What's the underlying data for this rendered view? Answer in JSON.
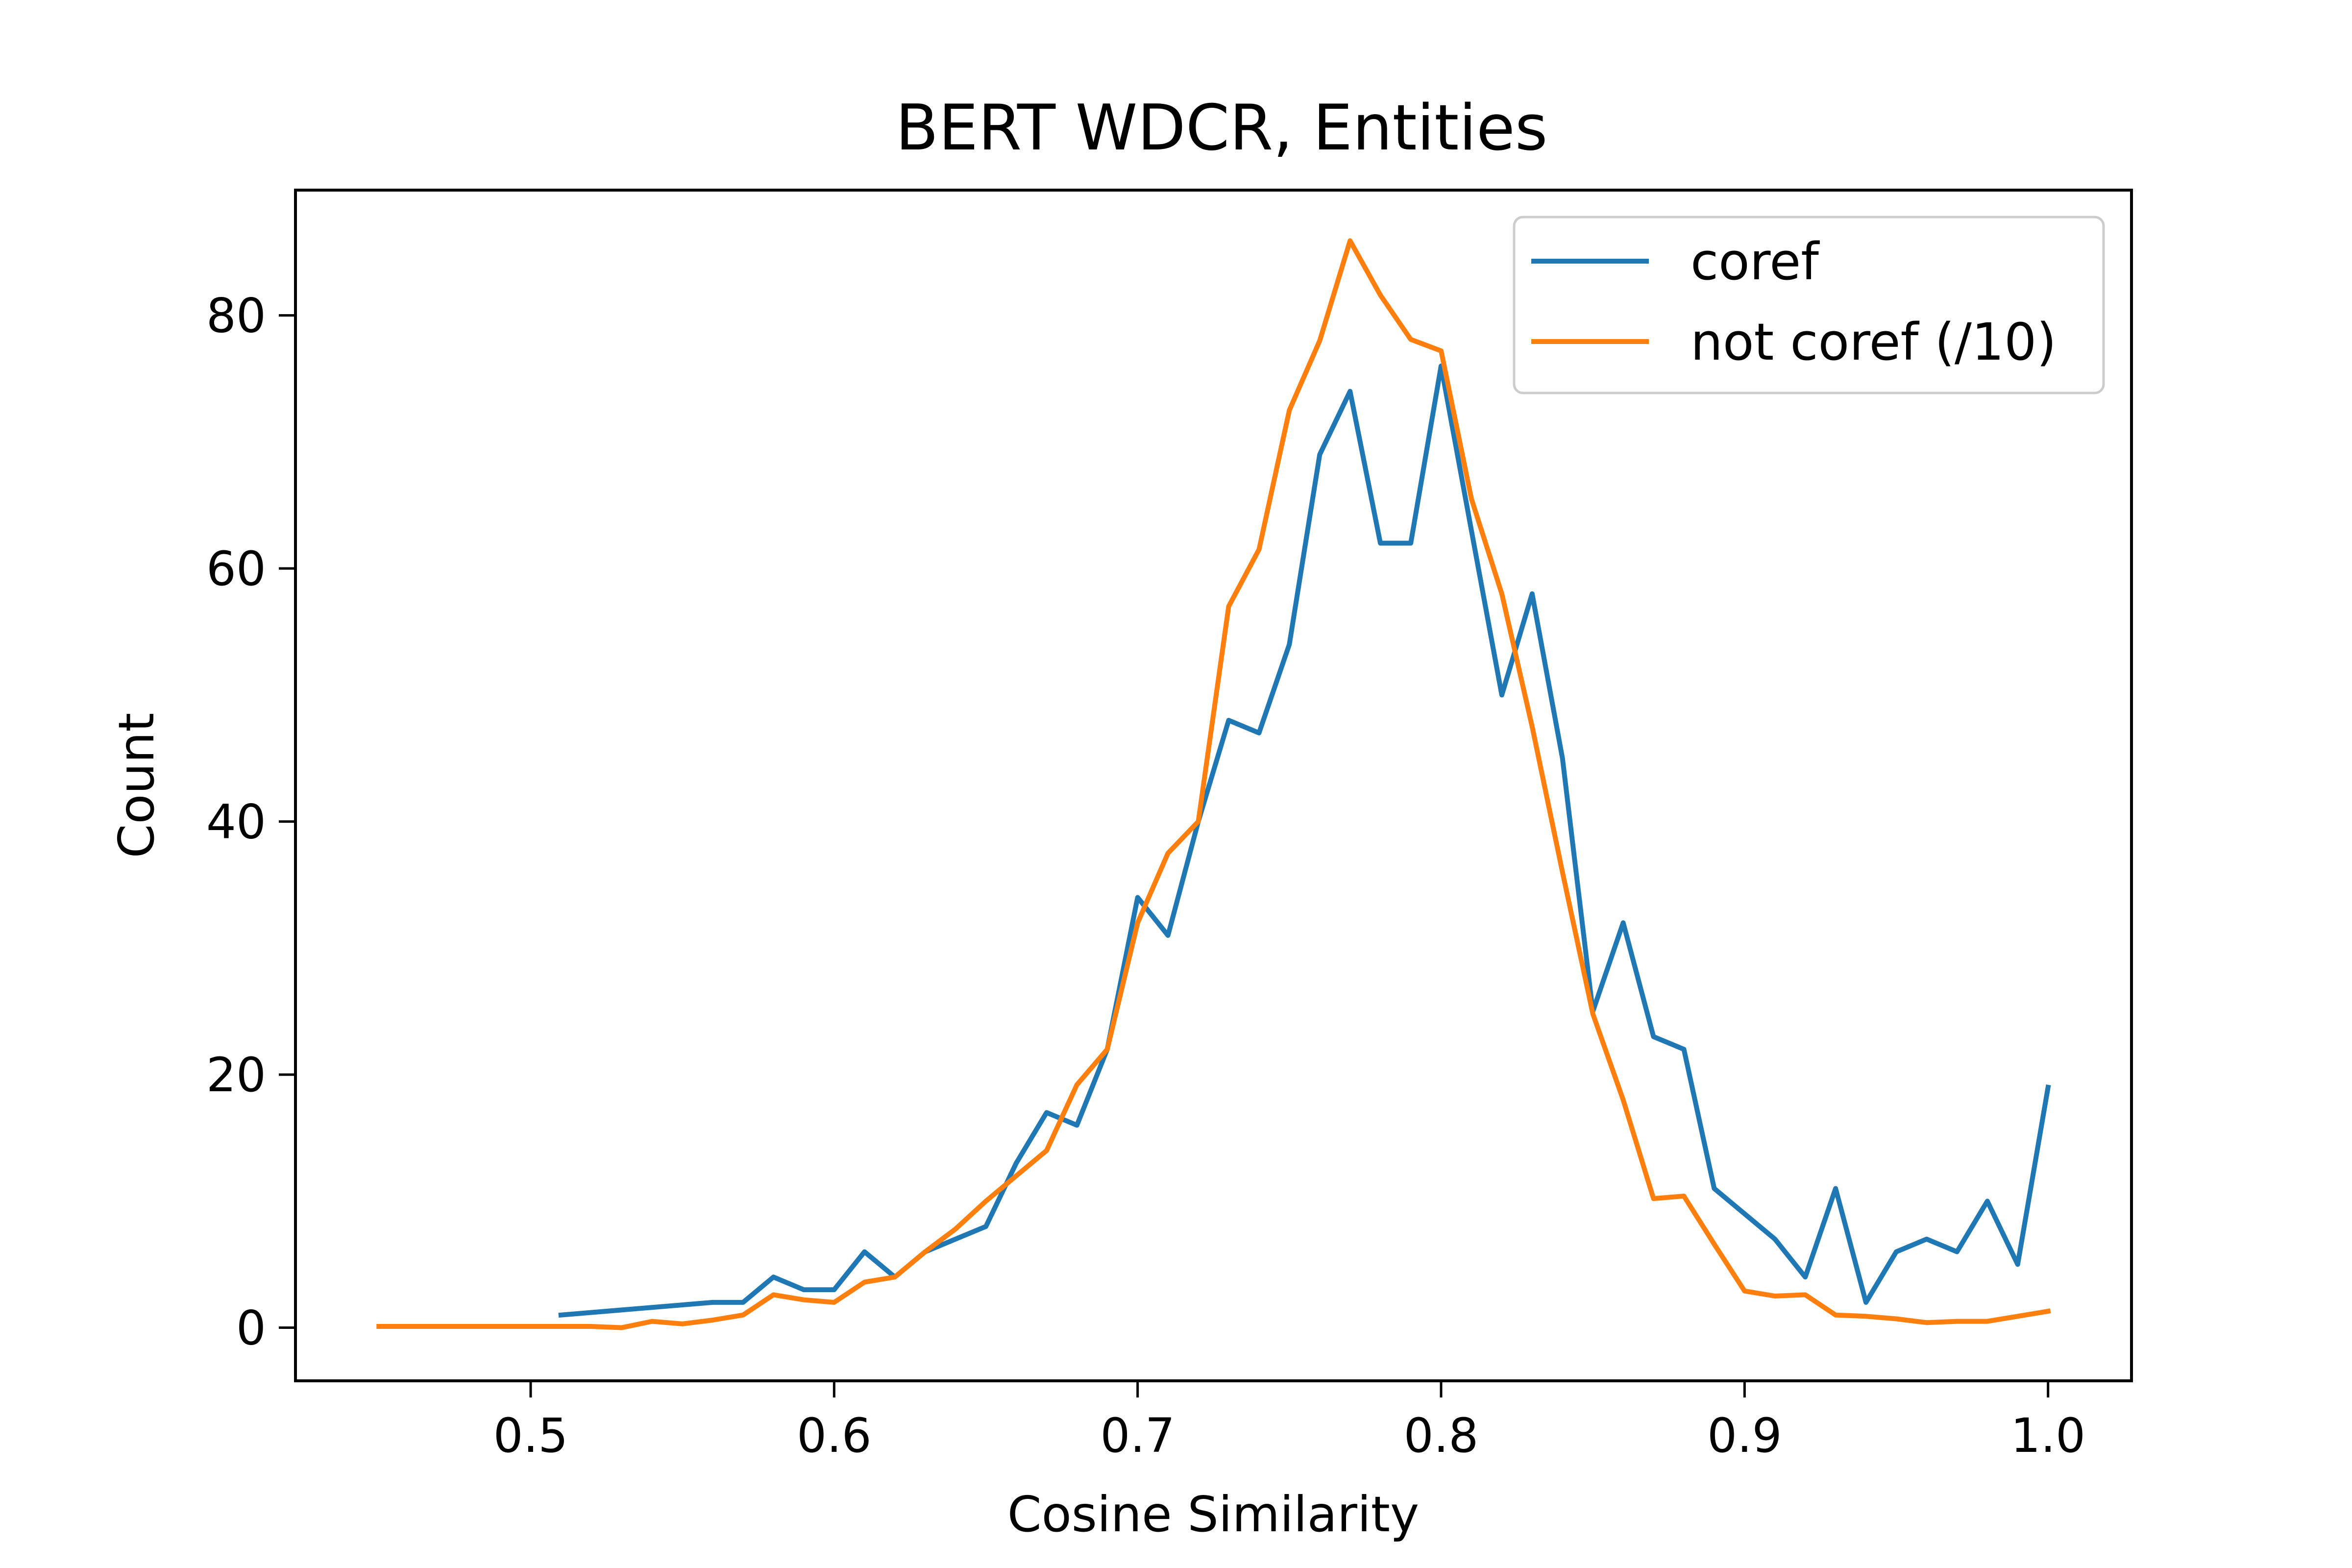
{
  "chart_data": {
    "type": "line",
    "title": "BERT WDCR, Entities",
    "xlabel": "Cosine Similarity",
    "ylabel": "Count",
    "xlim": [
      0.4225,
      1.0275
    ],
    "ylim": [
      -4.2,
      89.9
    ],
    "xticks": [
      0.5,
      0.6,
      0.7,
      0.8,
      0.9,
      1.0
    ],
    "xtick_labels": [
      "0.5",
      "0.6",
      "0.7",
      "0.8",
      "0.9",
      "1.0"
    ],
    "yticks": [
      0,
      20,
      40,
      60,
      80
    ],
    "ytick_labels": [
      "0",
      "20",
      "40",
      "60",
      "80"
    ],
    "grid": false,
    "legend_position": "top-right",
    "series": [
      {
        "name": "coref",
        "color": "#1f77b4",
        "x": [
          0.51,
          0.56,
          0.57,
          0.58,
          0.59,
          0.6,
          0.61,
          0.62,
          0.63,
          0.64,
          0.65,
          0.66,
          0.67,
          0.68,
          0.69,
          0.7,
          0.71,
          0.72,
          0.73,
          0.74,
          0.75,
          0.76,
          0.77,
          0.78,
          0.79,
          0.8,
          0.81,
          0.82,
          0.83,
          0.84,
          0.85,
          0.86,
          0.87,
          0.88,
          0.89,
          0.9,
          0.91,
          0.92,
          0.93,
          0.94,
          0.95,
          0.96,
          0.97,
          0.98,
          0.99,
          1.0
        ],
        "y": [
          1,
          2,
          2,
          4,
          3,
          3,
          6,
          4,
          6,
          7,
          8,
          13,
          17,
          16,
          22,
          34,
          31,
          40,
          48,
          47,
          54,
          69,
          74,
          62,
          62,
          76,
          63,
          50,
          58,
          45,
          25,
          32,
          23,
          22,
          11,
          9,
          7,
          4,
          11,
          2,
          6,
          7,
          6,
          10,
          5,
          19
        ]
      },
      {
        "name": "not coref (/10)",
        "color": "#ff7f0e",
        "x": [
          0.45,
          0.46,
          0.47,
          0.48,
          0.49,
          0.5,
          0.51,
          0.52,
          0.53,
          0.54,
          0.55,
          0.56,
          0.57,
          0.58,
          0.59,
          0.6,
          0.61,
          0.62,
          0.63,
          0.64,
          0.65,
          0.66,
          0.67,
          0.68,
          0.69,
          0.7,
          0.71,
          0.72,
          0.73,
          0.74,
          0.75,
          0.76,
          0.77,
          0.78,
          0.79,
          0.8,
          0.81,
          0.82,
          0.83,
          0.84,
          0.85,
          0.86,
          0.87,
          0.88,
          0.89,
          0.9,
          0.91,
          0.92,
          0.93,
          0.94,
          0.95,
          0.96,
          0.97,
          0.98,
          0.99,
          1.0
        ],
        "y": [
          0.1,
          0.1,
          0.1,
          0.1,
          0.1,
          0.1,
          0.1,
          0.1,
          0.0,
          0.5,
          0.3,
          0.6,
          1.0,
          2.6,
          2.2,
          2.0,
          3.6,
          4.0,
          6.0,
          7.8,
          10.0,
          12.0,
          14.0,
          19.2,
          22.0,
          32.0,
          37.5,
          40.0,
          57.0,
          61.5,
          72.5,
          78.0,
          85.9,
          81.6,
          78.1,
          77.2,
          65.5,
          58.0,
          47.5,
          36.0,
          24.8,
          18.0,
          10.2,
          10.4,
          6.6,
          2.9,
          2.5,
          2.6,
          1.0,
          0.9,
          0.7,
          0.4,
          0.5,
          0.5,
          0.9,
          1.3
        ]
      }
    ]
  }
}
